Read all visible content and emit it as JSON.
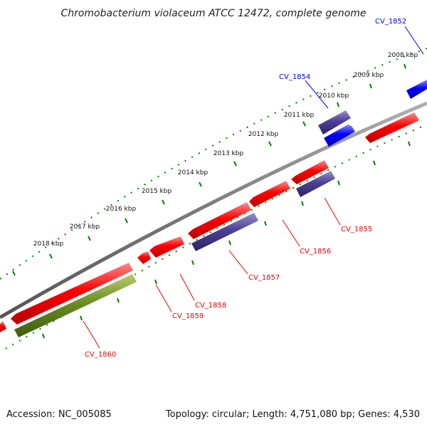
{
  "title": "Chromobacterium violaceum ATCC 12472, complete genome",
  "accession": "Accession: NC_005085",
  "summary": "Topology: circular; Length: 4,751,080 bp; Genes: 4,530",
  "kbp_labels": [
    "2008 kbp",
    "2009 kbp",
    "2010 kbp",
    "2011 kbp",
    "2012 kbp",
    "2013 kbp",
    "2014 kbp",
    "2015 kbp",
    "2016 kbp",
    "2017 kbp",
    "2018 kbp"
  ],
  "colors": {
    "forward_gene": "#0000ee",
    "forward_gene_alt": "#4b3d8f",
    "reverse_gene": "#ee0000",
    "reverse_gene_alt": "#4b3d8f",
    "green_gene": "#6b8e23",
    "backbone": "#808080",
    "ticks": "#008000"
  },
  "genes": [
    {
      "label": "CV_1852",
      "color": "#0000ee"
    },
    {
      "label": "CV_1854",
      "color": "#0000ee"
    },
    {
      "label": "CV_1855",
      "color": "#ee0000"
    },
    {
      "label": "CV_1856",
      "color": "#ee0000"
    },
    {
      "label": "CV_1857",
      "color": "#ee0000"
    },
    {
      "label": "CV_1858",
      "color": "#ee0000"
    },
    {
      "label": "CV_1859",
      "color": "#ee0000"
    },
    {
      "label": "CV_1860",
      "color": "#ee0000"
    }
  ]
}
